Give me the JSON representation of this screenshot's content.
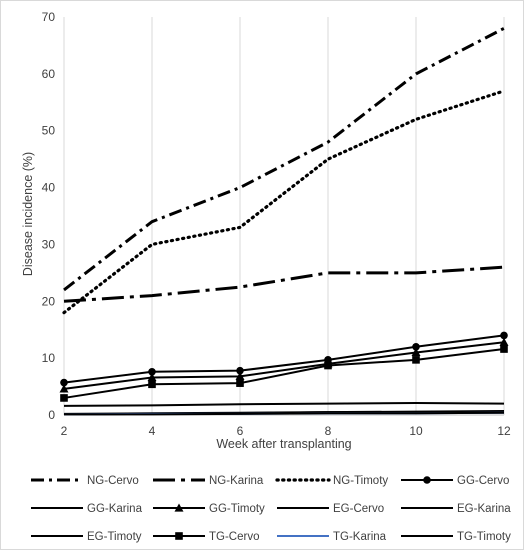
{
  "chart_data": {
    "type": "line",
    "x": [
      2,
      4,
      6,
      8,
      10,
      12
    ],
    "xlabel": "Week after transplanting",
    "ylabel": "Disease incidence (%)",
    "xlim": [
      2,
      12
    ],
    "ylim": [
      0,
      70
    ],
    "y_ticks": [
      0,
      10,
      20,
      30,
      40,
      50,
      60,
      70
    ],
    "x_ticks": [
      2,
      4,
      6,
      8,
      10,
      12
    ],
    "grid": "vertical",
    "legend_position": "bottom",
    "series": [
      {
        "name": "NG-Cervo",
        "values": [
          22,
          34,
          40,
          48,
          60,
          68
        ],
        "color": "#000000",
        "dash": "dashdot",
        "marker": "none"
      },
      {
        "name": "NG-Karina",
        "values": [
          20,
          21,
          22.5,
          25,
          25,
          26
        ],
        "color": "#000000",
        "dash": "longdashdot",
        "marker": "none"
      },
      {
        "name": "NG-Timoty",
        "values": [
          18,
          30,
          33,
          45,
          52,
          57
        ],
        "color": "#000000",
        "dash": "dot",
        "marker": "none"
      },
      {
        "name": "GG-Cervo",
        "values": [
          5.7,
          7.6,
          7.8,
          9.7,
          12,
          14
        ],
        "color": "#000000",
        "dash": "solid",
        "marker": "circle"
      },
      {
        "name": "GG-Karina",
        "values": [
          1.6,
          1.7,
          1.9,
          2.0,
          2.1,
          2.0
        ],
        "color": "#000000",
        "dash": "solid",
        "marker": "none"
      },
      {
        "name": "GG-Timoty",
        "values": [
          4.6,
          6.6,
          6.8,
          9.0,
          11,
          12.8
        ],
        "color": "#000000",
        "dash": "solid",
        "marker": "triangle"
      },
      {
        "name": "EG-Cervo",
        "values": [
          0.2,
          0.3,
          0.4,
          0.5,
          0.6,
          0.7
        ],
        "color": "#000000",
        "dash": "solid",
        "marker": "none"
      },
      {
        "name": "EG-Karina",
        "values": [
          0.1,
          0.2,
          0.3,
          0.4,
          0.5,
          0.6
        ],
        "color": "#000000",
        "dash": "solid",
        "marker": "none"
      },
      {
        "name": "EG-Timoty",
        "values": [
          0.1,
          0.2,
          0.3,
          0.5,
          0.5,
          0.6
        ],
        "color": "#000000",
        "dash": "solid",
        "marker": "none"
      },
      {
        "name": "TG-Cervo",
        "values": [
          3.0,
          5.4,
          5.6,
          8.7,
          9.7,
          11.6
        ],
        "color": "#000000",
        "dash": "solid",
        "marker": "square"
      },
      {
        "name": "TG-Karina",
        "values": [
          0.1,
          0.2,
          0.2,
          0.3,
          0.3,
          0.4
        ],
        "color": "#4472c4",
        "dash": "solid",
        "marker": "none"
      },
      {
        "name": "TG-Timoty",
        "values": [
          0.1,
          0.1,
          0.2,
          0.3,
          0.3,
          0.4
        ],
        "color": "#000000",
        "dash": "solid",
        "marker": "none"
      }
    ]
  }
}
